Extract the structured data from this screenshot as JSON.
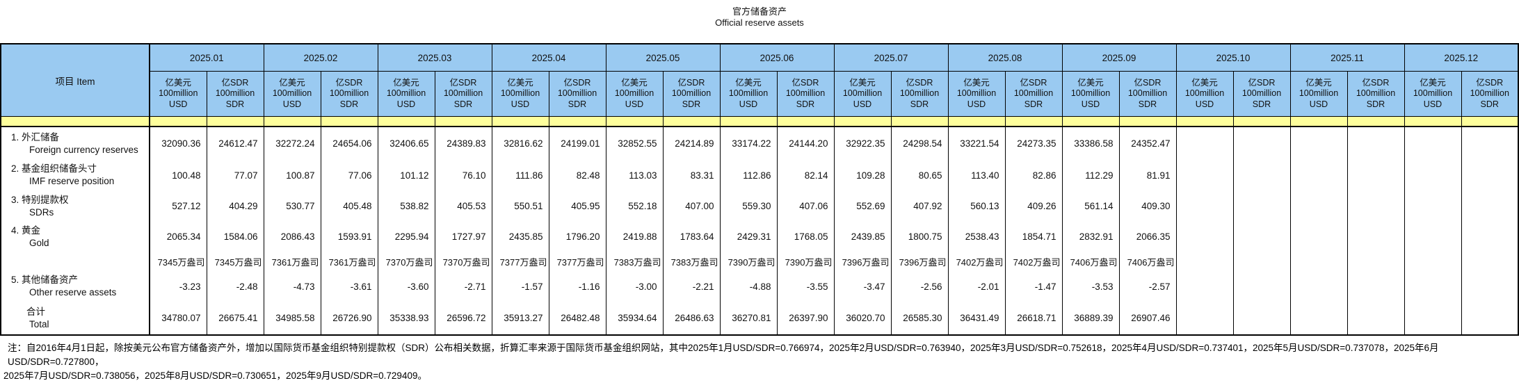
{
  "title": {
    "line1_zh": "官方储备资产",
    "line2_en": "Official reserve assets"
  },
  "table": {
    "item_header": "项目 Item",
    "months": [
      "2025.01",
      "2025.02",
      "2025.03",
      "2025.04",
      "2025.05",
      "2025.06",
      "2025.07",
      "2025.08",
      "2025.09",
      "2025.10",
      "2025.11",
      "2025.12"
    ],
    "unit_usd_lines": [
      "亿美元",
      "100million",
      "USD"
    ],
    "unit_sdr_lines": [
      "亿SDR",
      "100million",
      "SDR"
    ],
    "rows": [
      {
        "id": "foreign-currency-reserves",
        "label_zh": "1. 外汇储备",
        "label_en": "Foreign currency reserves",
        "values": [
          "32090.36",
          "24612.47",
          "32272.24",
          "24654.06",
          "32406.65",
          "24389.83",
          "32816.62",
          "24199.01",
          "32852.55",
          "24214.89",
          "33174.22",
          "24144.20",
          "32922.35",
          "24298.54",
          "33221.54",
          "24273.35",
          "33386.58",
          "24352.47",
          "",
          "",
          "",
          "",
          "",
          ""
        ]
      },
      {
        "id": "imf-reserve-position",
        "label_zh": "2. 基金组织储备头寸",
        "label_en": "IMF reserve position",
        "values": [
          "100.48",
          "77.07",
          "100.87",
          "77.06",
          "101.12",
          "76.10",
          "111.86",
          "82.48",
          "113.03",
          "83.31",
          "112.86",
          "82.14",
          "109.28",
          "80.65",
          "113.40",
          "82.86",
          "112.29",
          "81.91",
          "",
          "",
          "",
          "",
          "",
          ""
        ]
      },
      {
        "id": "sdrs",
        "label_zh": "3. 特别提款权",
        "label_en": "SDRs",
        "values": [
          "527.12",
          "404.29",
          "530.77",
          "405.48",
          "538.82",
          "405.53",
          "550.51",
          "405.95",
          "552.18",
          "407.00",
          "559.30",
          "407.06",
          "552.69",
          "407.92",
          "560.13",
          "409.26",
          "561.14",
          "409.30",
          "",
          "",
          "",
          "",
          "",
          ""
        ]
      },
      {
        "id": "gold",
        "label_zh": "4. 黄金",
        "label_en": "Gold",
        "values": [
          "2065.34",
          "1584.06",
          "2086.43",
          "1593.91",
          "2295.94",
          "1727.97",
          "2435.85",
          "1796.20",
          "2419.88",
          "1783.64",
          "2429.31",
          "1768.05",
          "2439.85",
          "1800.75",
          "2538.43",
          "1854.71",
          "2832.91",
          "2066.35",
          "",
          "",
          "",
          "",
          "",
          ""
        ],
        "ounces": [
          "7345万盎司",
          "7345万盎司",
          "7361万盎司",
          "7361万盎司",
          "7370万盎司",
          "7370万盎司",
          "7377万盎司",
          "7377万盎司",
          "7383万盎司",
          "7383万盎司",
          "7390万盎司",
          "7390万盎司",
          "7396万盎司",
          "7396万盎司",
          "7402万盎司",
          "7402万盎司",
          "7406万盎司",
          "7406万盎司",
          "",
          "",
          "",
          "",
          "",
          ""
        ]
      },
      {
        "id": "other-reserve-assets",
        "label_zh": "5. 其他储备资产",
        "label_en": "Other reserve assets",
        "values": [
          "-3.23",
          "-2.48",
          "-4.73",
          "-3.61",
          "-3.60",
          "-2.71",
          "-1.57",
          "-1.16",
          "-3.00",
          "-2.21",
          "-4.88",
          "-3.55",
          "-3.47",
          "-2.56",
          "-2.01",
          "-1.47",
          "-3.53",
          "-2.57",
          "",
          "",
          "",
          "",
          "",
          ""
        ]
      },
      {
        "id": "total",
        "label_zh": "合计",
        "label_en": "Total",
        "values": [
          "34780.07",
          "26675.41",
          "34985.58",
          "26726.90",
          "35338.93",
          "26596.72",
          "35913.27",
          "26482.48",
          "35934.64",
          "26486.63",
          "36270.81",
          "26397.90",
          "36020.70",
          "26585.30",
          "36431.49",
          "26618.71",
          "36889.39",
          "26907.46",
          "",
          "",
          "",
          "",
          "",
          ""
        ]
      }
    ]
  },
  "footnote": {
    "line1": "注：自2016年4月1日起，除按美元公布官方储备资产外，增加以国际货币基金组织特别提款权（SDR）公布相关数据，折算汇率来源于国际货币基金组织网站，其中2025年1月USD/SDR=0.766974，2025年2月USD/SDR=0.763940，2025年3月USD/SDR=0.752618，2025年4月USD/SDR=0.737401，2025年5月USD/SDR=0.737078，2025年6月USD/SDR=0.727800，",
    "line2": "2025年7月USD/SDR=0.738056，2025年8月USD/SDR=0.730651，2025年9月USD/SDR=0.729409。"
  },
  "colors": {
    "header_blue": "#9ACAF1",
    "band_yellow": "#FEFF9C",
    "border": "#000000",
    "background": "#FFFFFF"
  }
}
